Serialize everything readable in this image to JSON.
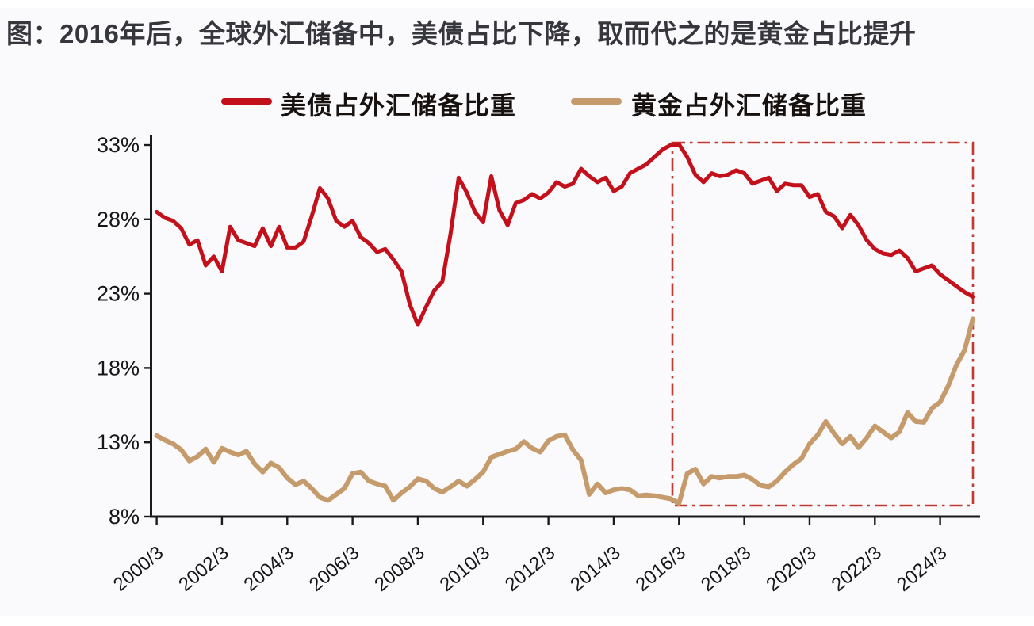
{
  "page": {
    "title": "图：2016年后，全球外汇储备中，美债占比下降，取而代之的是黄金占比提升"
  },
  "legend": [
    {
      "label": "美债占外汇储备比重",
      "color": "#c3101b"
    },
    {
      "label": "黄金占外汇储备比重",
      "color": "#c69b6c"
    }
  ],
  "colors": {
    "us_debt_line": "#c3101b",
    "gold_line": "#c69b6c",
    "highlight_box": "#c03a32",
    "axis": "#1a1a1a",
    "background": "#fafafd",
    "title_text": "#36363d"
  },
  "chart_data": {
    "type": "line",
    "title": "图：2016年后，全球外汇储备中，美债占比下降，取而代之的是黄金占比提升",
    "xlabel": "",
    "ylabel": "",
    "ylim": [
      8,
      33
    ],
    "grid": false,
    "legend_position": "top",
    "y_tick_values": [
      33,
      28,
      23,
      18,
      13,
      8
    ],
    "y_tick_labels": [
      "33%",
      "28%",
      "23%",
      "18%",
      "13%",
      "8%"
    ],
    "x_tick_labels": [
      "2000/3",
      "2002/3",
      "2004/3",
      "2006/3",
      "2008/3",
      "2010/3",
      "2012/3",
      "2014/3",
      "2016/3",
      "2018/3",
      "2020/3",
      "2022/3",
      "2024/3"
    ],
    "x_frequency": "quarterly",
    "dates": [
      "2000/3",
      "2000/6",
      "2000/9",
      "2000/12",
      "2001/3",
      "2001/6",
      "2001/9",
      "2001/12",
      "2002/3",
      "2002/6",
      "2002/9",
      "2002/12",
      "2003/3",
      "2003/6",
      "2003/9",
      "2003/12",
      "2004/3",
      "2004/6",
      "2004/9",
      "2004/12",
      "2005/3",
      "2005/6",
      "2005/9",
      "2005/12",
      "2006/3",
      "2006/6",
      "2006/9",
      "2006/12",
      "2007/3",
      "2007/6",
      "2007/9",
      "2007/12",
      "2008/3",
      "2008/6",
      "2008/9",
      "2008/12",
      "2009/3",
      "2009/6",
      "2009/9",
      "2009/12",
      "2010/3",
      "2010/6",
      "2010/9",
      "2010/12",
      "2011/3",
      "2011/6",
      "2011/9",
      "2011/12",
      "2012/3",
      "2012/6",
      "2012/9",
      "2012/12",
      "2013/3",
      "2013/6",
      "2013/9",
      "2013/12",
      "2014/3",
      "2014/6",
      "2014/9",
      "2014/12",
      "2015/3",
      "2015/6",
      "2015/9",
      "2015/12",
      "2016/3",
      "2016/6",
      "2016/9",
      "2016/12",
      "2017/3",
      "2017/6",
      "2017/9",
      "2017/12",
      "2018/3",
      "2018/6",
      "2018/9",
      "2018/12",
      "2019/3",
      "2019/6",
      "2019/9",
      "2019/12",
      "2020/3",
      "2020/6",
      "2020/9",
      "2020/12",
      "2021/3",
      "2021/6",
      "2021/9",
      "2021/12",
      "2022/3",
      "2022/6",
      "2022/9",
      "2022/12",
      "2023/3",
      "2023/6",
      "2023/9",
      "2023/12",
      "2024/3",
      "2024/6",
      "2024/9",
      "2024/12",
      "2025/3"
    ],
    "series": [
      {
        "name": "美债占外汇储备比重",
        "color": "#c3101b",
        "stroke_width": 5,
        "values": [
          28.5,
          28.1,
          27.9,
          27.4,
          26.3,
          26.6,
          24.9,
          25.5,
          24.5,
          27.5,
          26.6,
          26.4,
          26.2,
          27.4,
          26.2,
          27.5,
          26.1,
          26.1,
          26.5,
          28.2,
          30.1,
          29.4,
          27.9,
          27.5,
          27.9,
          26.8,
          26.4,
          25.8,
          26.0,
          25.3,
          24.5,
          22.3,
          20.9,
          22.1,
          23.2,
          23.8,
          27.0,
          30.8,
          29.8,
          28.5,
          27.8,
          30.9,
          28.6,
          27.6,
          29.1,
          29.3,
          29.7,
          29.4,
          29.8,
          30.5,
          30.2,
          30.4,
          31.4,
          30.9,
          30.5,
          30.8,
          29.9,
          30.2,
          31.1,
          31.4,
          31.7,
          32.2,
          32.7,
          33.0,
          33.05,
          32.2,
          31.0,
          30.5,
          31.1,
          30.9,
          31.0,
          31.3,
          31.1,
          30.4,
          30.6,
          30.8,
          29.9,
          30.4,
          30.3,
          30.3,
          29.5,
          29.7,
          28.5,
          28.2,
          27.4,
          28.3,
          27.6,
          26.6,
          26.0,
          25.7,
          25.6,
          25.9,
          25.4,
          24.5,
          24.7,
          24.9,
          24.3,
          23.9,
          23.5,
          23.1,
          22.8
        ]
      },
      {
        "name": "黄金占外汇储备比重",
        "color": "#c69b6c",
        "stroke_width": 6,
        "values": [
          13.45,
          13.15,
          12.9,
          12.5,
          11.75,
          12.05,
          12.55,
          11.65,
          12.6,
          12.35,
          12.15,
          12.4,
          11.55,
          11.0,
          11.6,
          11.3,
          10.6,
          10.15,
          10.4,
          9.9,
          9.3,
          9.1,
          9.5,
          9.9,
          10.9,
          11.0,
          10.4,
          10.2,
          10.05,
          9.1,
          9.6,
          10.0,
          10.55,
          10.4,
          9.9,
          9.65,
          10.0,
          10.4,
          10.05,
          10.5,
          11.0,
          12.0,
          12.2,
          12.4,
          12.55,
          13.05,
          12.6,
          12.35,
          13.1,
          13.4,
          13.5,
          12.5,
          11.8,
          9.5,
          10.2,
          9.6,
          9.8,
          9.9,
          9.8,
          9.4,
          9.45,
          9.4,
          9.3,
          9.2,
          8.9,
          10.9,
          11.2,
          10.2,
          10.7,
          10.6,
          10.7,
          10.7,
          10.8,
          10.5,
          10.1,
          10.0,
          10.4,
          11.0,
          11.5,
          11.9,
          12.9,
          13.5,
          14.4,
          13.6,
          12.9,
          13.4,
          12.65,
          13.3,
          14.1,
          13.7,
          13.3,
          13.7,
          15.0,
          14.4,
          14.35,
          15.3,
          15.7,
          16.8,
          18.2,
          19.2,
          21.3
        ]
      }
    ],
    "annotation_box": {
      "description": "dash-dot red rectangle highlighting the period after 2016",
      "x_from": "2016/3",
      "x_to": "2025/3",
      "y_from": 8.75,
      "y_to": 33.1,
      "style": "dash-dot",
      "color": "#c03a32"
    }
  }
}
